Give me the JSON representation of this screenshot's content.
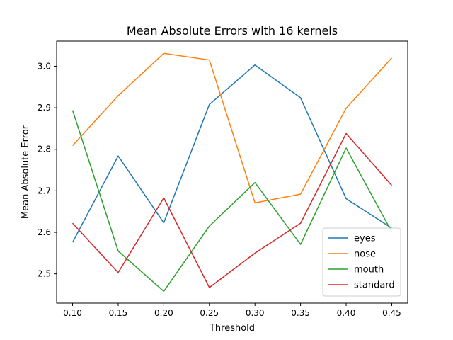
{
  "chart_data": {
    "type": "line",
    "title": "Mean Absolute Errors with 16 kernels",
    "xlabel": "Threshold",
    "ylabel": "Mean Absolute Error",
    "x": [
      0.1,
      0.15,
      0.2,
      0.25,
      0.3,
      0.35,
      0.4,
      0.45
    ],
    "x_ticks": [
      "0.10",
      "0.15",
      "0.20",
      "0.25",
      "0.30",
      "0.35",
      "0.40",
      "0.45"
    ],
    "y_ticks": [
      "2.5",
      "2.6",
      "2.7",
      "2.8",
      "2.9",
      "3.0"
    ],
    "xlim": [
      0.0825,
      0.4675
    ],
    "ylim": [
      2.4295,
      3.0605
    ],
    "grid": false,
    "legend_position": "lower-right",
    "series": [
      {
        "name": "eyes",
        "color": "#1f77b4",
        "values": [
          2.576,
          2.784,
          2.623,
          2.908,
          3.003,
          2.924,
          2.681,
          2.61
        ]
      },
      {
        "name": "nose",
        "color": "#ff7f0e",
        "values": [
          2.809,
          2.929,
          3.031,
          3.015,
          2.671,
          2.692,
          2.899,
          3.02
        ]
      },
      {
        "name": "mouth",
        "color": "#2ca02c",
        "values": [
          2.894,
          2.555,
          2.458,
          2.615,
          2.72,
          2.571,
          2.803,
          2.601
        ]
      },
      {
        "name": "standard",
        "color": "#d62728",
        "values": [
          2.622,
          2.503,
          2.683,
          2.467,
          2.55,
          2.622,
          2.838,
          2.713
        ]
      }
    ]
  }
}
